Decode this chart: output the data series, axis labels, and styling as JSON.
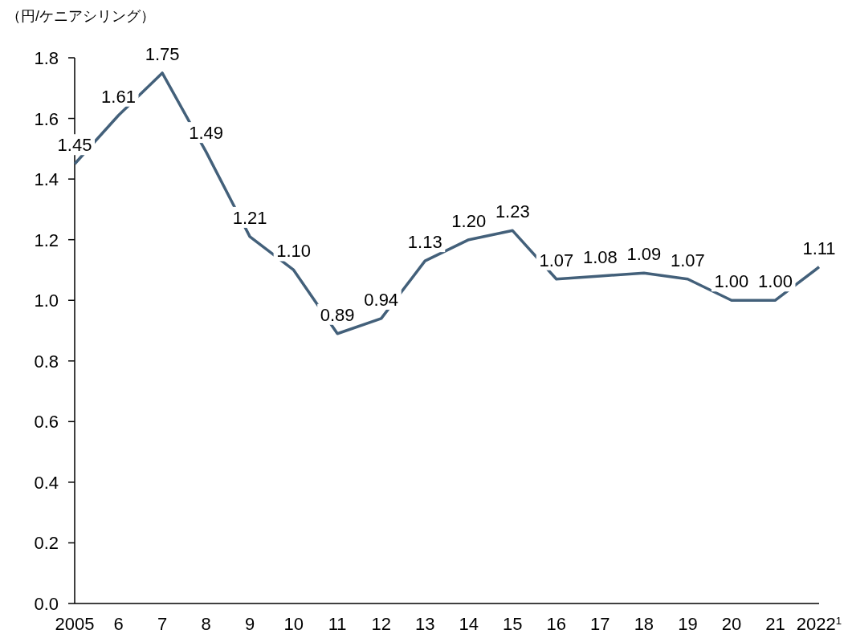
{
  "chart_data": {
    "type": "line",
    "ylabel": "（円/ケニアシリング）",
    "categories": [
      "2005",
      "6",
      "7",
      "8",
      "9",
      "10",
      "11",
      "12",
      "13",
      "14",
      "15",
      "16",
      "17",
      "18",
      "19",
      "20",
      "21",
      "2022$^{1}$"
    ],
    "series": [
      {
        "color": "#43607a",
        "values": [
          1.45,
          1.61,
          1.75,
          1.49,
          1.21,
          1.1,
          0.89,
          0.94,
          1.13,
          1.2,
          1.23,
          1.07,
          1.08,
          1.09,
          1.07,
          1.0,
          1.0,
          1.11
        ],
        "value_labels": [
          "1.45",
          "1.61",
          "1.75",
          "1.49",
          "1.21",
          "1.10",
          "0.89",
          "0.94",
          "1.13",
          "1.20",
          "1.23",
          "1.07",
          "1.08",
          "1.09",
          "1.07",
          "1.00",
          "1.00",
          "1.11"
        ]
      }
    ],
    "ylim": [
      0,
      1.8
    ],
    "yticks": [
      {
        "value": 0,
        "label": "0.0"
      },
      0.2,
      0.4,
      0.6,
      0.8,
      {
        "value": 1,
        "label": "1.0"
      },
      1.2,
      1.4,
      1.6,
      1.8
    ],
    "line_style": "solid"
  }
}
